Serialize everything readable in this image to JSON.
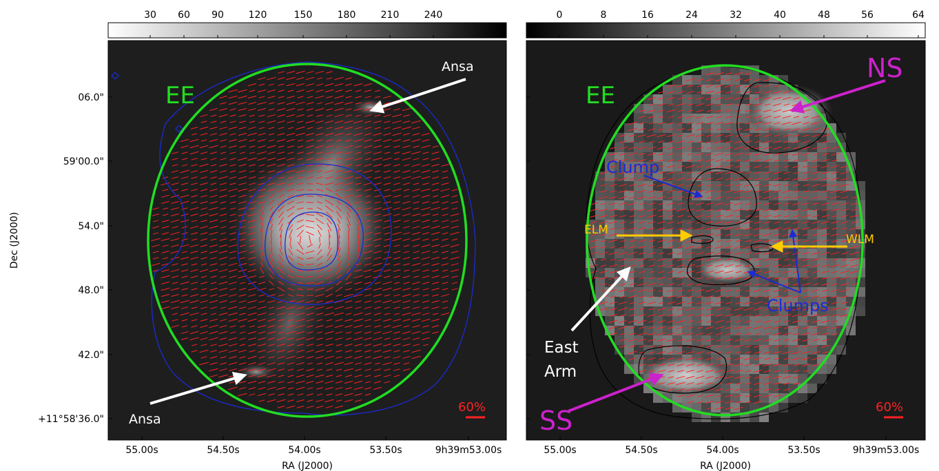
{
  "left_panel": {
    "colorbar": {
      "ticks": [
        "30",
        "60",
        "90",
        "120",
        "150",
        "180",
        "210",
        "240"
      ],
      "direction": "white-to-black"
    },
    "ylabel": "Dec (J2000)",
    "xlabel": "RA (J2000)",
    "yticks": [
      "06.0\"",
      "59'00.0\"",
      "54.0\"",
      "48.0\"",
      "42.0\"",
      "+11°58'36.0\""
    ],
    "xticks": [
      "55.00s",
      "54.50s",
      "54.00s",
      "53.50s",
      "9h39m53.00s"
    ],
    "labels": {
      "ee": "EE",
      "ansa_top": "Ansa",
      "ansa_bottom": "Ansa",
      "scale": "60%"
    },
    "colors": {
      "ellipse": "#22dd22",
      "contour": "#1a2bd6",
      "vectors": "#ff2222",
      "ee": "#22dd22"
    }
  },
  "right_panel": {
    "colorbar": {
      "ticks": [
        "0",
        "8",
        "16",
        "24",
        "32",
        "40",
        "48",
        "56",
        "64"
      ],
      "direction": "black-to-white"
    },
    "xlabel": "RA (J2000)",
    "xticks": [
      "55.00s",
      "54.50s",
      "54.00s",
      "53.50s",
      "9h39m53.00s"
    ],
    "labels": {
      "ee": "EE",
      "ns": "NS",
      "ss": "SS",
      "clump": "Clump",
      "clumps": "Clumps",
      "elm": "ELM",
      "wlm": "WLM",
      "east_arm_1": "East",
      "east_arm_2": "Arm",
      "scale": "60%"
    },
    "colors": {
      "ellipse": "#22dd22",
      "ns_ss": "#cc22cc",
      "clump": "#1a2bd6",
      "elm_wlm": "#ffcc00",
      "vectors": "#ff2222"
    }
  }
}
